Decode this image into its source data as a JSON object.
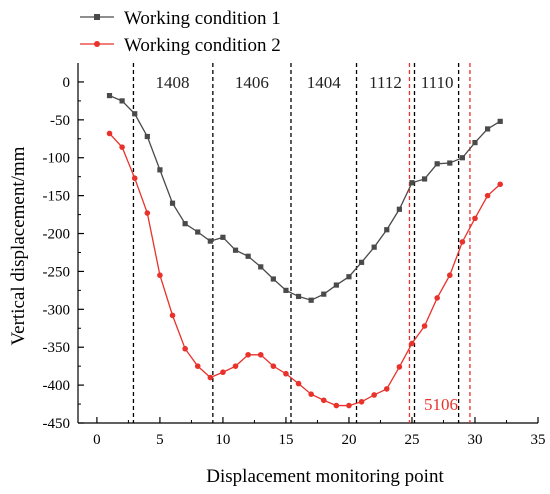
{
  "chart_data": {
    "type": "line",
    "title": "",
    "xlabel": "Displacement monitoring point",
    "ylabel": "Vertical displacement/mm",
    "xlim": [
      -1.5,
      35
    ],
    "ylim": [
      -450,
      25
    ],
    "xticks": [
      0,
      5,
      10,
      15,
      20,
      25,
      30,
      35
    ],
    "yticks": [
      0,
      -50,
      -100,
      -150,
      -200,
      -250,
      -300,
      -350,
      -400,
      -450
    ],
    "grid": false,
    "legend_position": "top-left",
    "series": [
      {
        "name": "Working condition 1",
        "color": "#4a4a4a",
        "marker": "square",
        "x": [
          1,
          2,
          3,
          4,
          5,
          6,
          7,
          8,
          9,
          10,
          11,
          12,
          13,
          14,
          15,
          16,
          17,
          18,
          19,
          20,
          21,
          22,
          23,
          24,
          25,
          26,
          27,
          28,
          29,
          30,
          31,
          32
        ],
        "y": [
          -18,
          -25,
          -42,
          -72,
          -116,
          -160,
          -187,
          -198,
          -210,
          -205,
          -222,
          -230,
          -244,
          -260,
          -275,
          -283,
          -288,
          -280,
          -268,
          -257,
          -238,
          -218,
          -195,
          -168,
          -133,
          -128,
          -108,
          -107,
          -100,
          -80,
          -62,
          -52
        ]
      },
      {
        "name": "Working condition 2",
        "color": "#e8322b",
        "marker": "circle",
        "x": [
          1,
          2,
          3,
          4,
          5,
          6,
          7,
          8,
          9,
          10,
          11,
          12,
          13,
          14,
          15,
          16,
          17,
          18,
          19,
          20,
          21,
          22,
          23,
          24,
          25,
          26,
          27,
          28,
          29,
          30,
          31,
          32
        ],
        "y": [
          -68,
          -86,
          -127,
          -173,
          -255,
          -308,
          -352,
          -375,
          -390,
          -383,
          -375,
          -360,
          -360,
          -375,
          -385,
          -398,
          -412,
          -420,
          -427,
          -427,
          -422,
          -413,
          -405,
          -376,
          -345,
          -322,
          -285,
          -255,
          -211,
          -180,
          -150,
          -135
        ]
      }
    ],
    "boundaries": [
      {
        "x": 2.9,
        "color": "#000000"
      },
      {
        "x": 9.2,
        "color": "#000000"
      },
      {
        "x": 15.4,
        "color": "#000000"
      },
      {
        "x": 20.6,
        "color": "#000000"
      },
      {
        "x": 25.2,
        "color": "#000000"
      },
      {
        "x": 28.7,
        "color": "#000000"
      },
      {
        "x": 24.8,
        "color": "#e8322b"
      },
      {
        "x": 29.6,
        "color": "#e8322b"
      }
    ],
    "panel_labels": [
      {
        "text": "1408",
        "x": 6.0,
        "y": 0,
        "color": "#222222"
      },
      {
        "text": "1406",
        "x": 12.3,
        "y": 0,
        "color": "#222222"
      },
      {
        "text": "1404",
        "x": 18.0,
        "y": 0,
        "color": "#222222"
      },
      {
        "text": "1112",
        "x": 22.9,
        "y": 0,
        "color": "#222222"
      },
      {
        "text": "1110",
        "x": 27.0,
        "y": 0,
        "color": "#222222"
      },
      {
        "text": "5106",
        "x": 27.3,
        "y": -425,
        "color": "#e8322b"
      }
    ]
  }
}
